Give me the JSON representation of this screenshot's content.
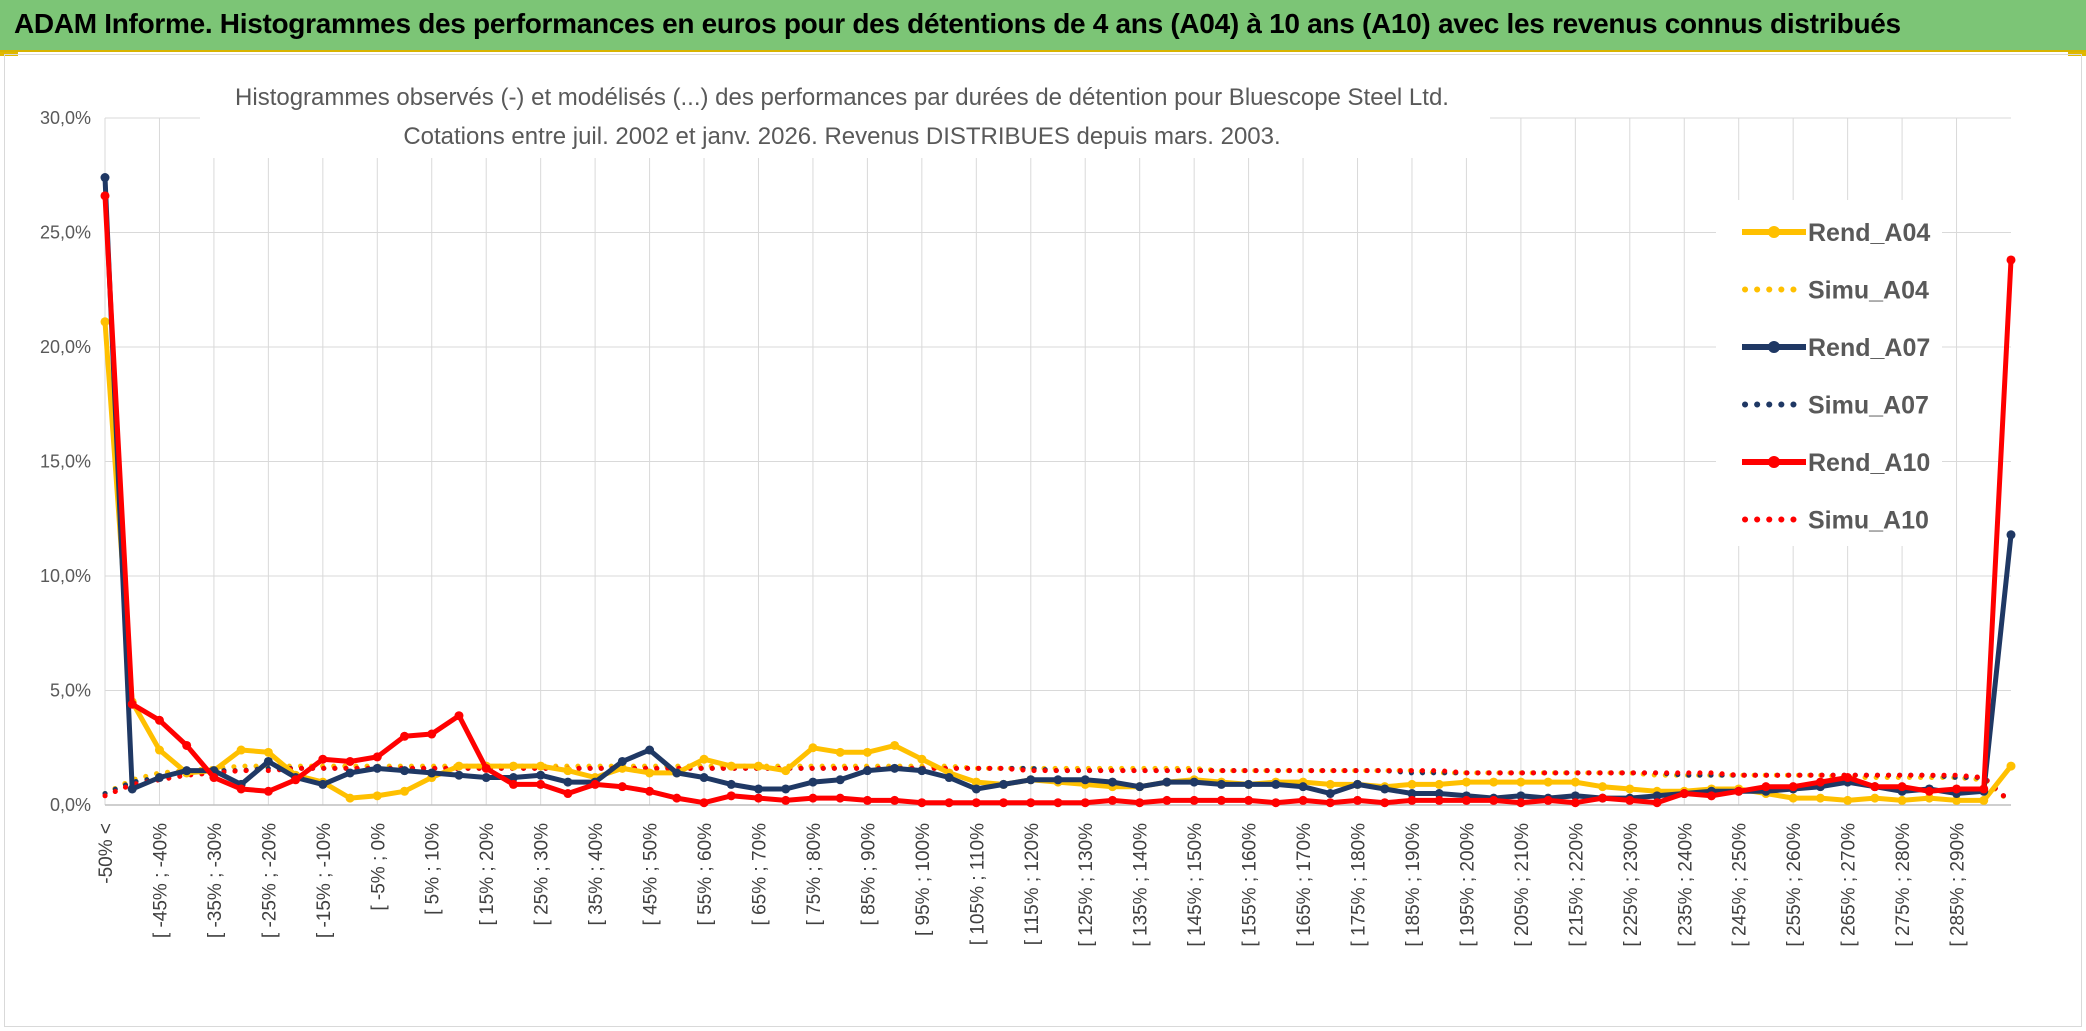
{
  "banner": {
    "title": "ADAM Informe. Histogrammes des performances en euros pour des détentions de 4 ans (A04) à 10 ans (A10) avec les revenus connus distribués"
  },
  "chart_data": {
    "type": "line",
    "title_line1": "Histogrammes observés (-) et modélisés (...) des performances par durées de détention pour Bluescope Steel Ltd.",
    "title_line2": "Cotations entre juil. 2002 et janv. 2026. Revenus DISTRIBUES depuis mars. 2003.",
    "ylim": [
      0,
      30
    ],
    "yticks": [
      0,
      5,
      10,
      15,
      20,
      25,
      30
    ],
    "ytick_labels": [
      "0,0%",
      "5,0%",
      "10,0%",
      "15,0%",
      "20,0%",
      "25,0%",
      "30,0%"
    ],
    "x_labels": [
      "-50% <",
      "[ -45% ; -40%",
      "[ -35% ; -30%",
      "[ -25% ; -20%",
      "[ -15% ; -10%",
      "[ -5% ; 0%",
      "[ 5% ; 10%",
      "[ 15% ; 20%",
      "[ 25% ; 30%",
      "[ 35% ; 40%",
      "[ 45% ; 50%",
      "[ 55% ; 60%",
      "[ 65% ; 70%",
      "[ 75% ; 80%",
      "[ 85% ; 90%",
      "[ 95% ; 100%",
      "[ 105% ; 110%",
      "[ 115% ; 120%",
      "[ 125% ; 130%",
      "[ 135% ; 140%",
      "[ 145% ; 150%",
      "[ 155% ; 160%",
      "[ 165% ; 170%",
      "[ 175% ; 180%",
      "[ 185% ; 190%",
      "[ 195% ; 200%",
      "[ 205% ; 210%",
      "[ 215% ; 220%",
      "[ 225% ; 230%",
      "[ 235% ; 240%",
      "[ 245% ; 250%",
      "[ 255% ; 260%",
      "[ 265% ; 270%",
      "[ 275% ; 280%",
      "[ 285% ; 290%"
    ],
    "n_points": 71,
    "legend_position": "right",
    "series": [
      {
        "name": "Rend_A04",
        "color": "#ffc000",
        "style": "solid",
        "marker": true,
        "values": [
          21.1,
          4.5,
          2.4,
          1.4,
          1.5,
          2.4,
          2.3,
          1.3,
          1.0,
          0.3,
          0.4,
          0.6,
          1.2,
          1.7,
          1.7,
          1.7,
          1.7,
          1.5,
          1.2,
          1.6,
          1.4,
          1.4,
          2.0,
          1.7,
          1.7,
          1.5,
          2.5,
          2.3,
          2.3,
          2.6,
          2.0,
          1.4,
          1.0,
          0.9,
          1.1,
          1.0,
          0.9,
          0.8,
          0.8,
          1.0,
          1.1,
          1.0,
          0.9,
          1.0,
          1.0,
          0.9,
          0.9,
          0.8,
          0.9,
          0.9,
          1.0,
          1.0,
          1.0,
          1.0,
          1.0,
          0.8,
          0.7,
          0.6,
          0.6,
          0.7,
          0.7,
          0.5,
          0.3,
          0.3,
          0.2,
          0.3,
          0.2,
          0.3,
          0.2,
          0.2,
          1.7
        ]
      },
      {
        "name": "Simu_A04",
        "color": "#ffc000",
        "style": "dotted",
        "marker": false,
        "values": [
          0.5,
          1.1,
          1.4,
          1.5,
          1.6,
          1.7,
          1.7,
          1.7,
          1.7,
          1.7,
          1.7,
          1.7,
          1.7,
          1.7,
          1.7,
          1.7,
          1.7,
          1.7,
          1.7,
          1.7,
          1.7,
          1.7,
          1.7,
          1.7,
          1.7,
          1.7,
          1.7,
          1.7,
          1.7,
          1.7,
          1.7,
          1.7,
          1.6,
          1.6,
          1.6,
          1.6,
          1.6,
          1.6,
          1.6,
          1.6,
          1.6,
          1.5,
          1.5,
          1.5,
          1.5,
          1.5,
          1.5,
          1.5,
          1.5,
          1.4,
          1.4,
          1.4,
          1.4,
          1.4,
          1.4,
          1.4,
          1.4,
          1.3,
          1.3,
          1.3,
          1.3,
          1.3,
          1.3,
          1.3,
          1.2,
          1.2,
          1.2,
          1.2,
          1.2,
          1.1,
          0.1
        ]
      },
      {
        "name": "Rend_A07",
        "color": "#1f3864",
        "style": "solid",
        "marker": true,
        "values": [
          27.4,
          0.7,
          1.2,
          1.5,
          1.5,
          0.9,
          1.9,
          1.2,
          0.9,
          1.4,
          1.6,
          1.5,
          1.4,
          1.3,
          1.2,
          1.2,
          1.3,
          1.0,
          1.0,
          1.9,
          2.4,
          1.4,
          1.2,
          0.9,
          0.7,
          0.7,
          1.0,
          1.1,
          1.5,
          1.6,
          1.5,
          1.2,
          0.7,
          0.9,
          1.1,
          1.1,
          1.1,
          1.0,
          0.8,
          1.0,
          1.0,
          0.9,
          0.9,
          0.9,
          0.8,
          0.5,
          0.9,
          0.7,
          0.5,
          0.5,
          0.4,
          0.3,
          0.4,
          0.3,
          0.4,
          0.3,
          0.3,
          0.4,
          0.5,
          0.6,
          0.6,
          0.6,
          0.7,
          0.8,
          1.0,
          0.8,
          0.6,
          0.7,
          0.5,
          0.6,
          11.8
        ]
      },
      {
        "name": "Simu_A07",
        "color": "#1f3864",
        "style": "dotted",
        "marker": false,
        "values": [
          0.5,
          1.0,
          1.2,
          1.4,
          1.5,
          1.5,
          1.6,
          1.6,
          1.6,
          1.6,
          1.6,
          1.6,
          1.6,
          1.6,
          1.6,
          1.6,
          1.6,
          1.6,
          1.6,
          1.6,
          1.6,
          1.6,
          1.6,
          1.6,
          1.6,
          1.6,
          1.6,
          1.6,
          1.6,
          1.6,
          1.6,
          1.6,
          1.6,
          1.6,
          1.6,
          1.5,
          1.5,
          1.5,
          1.5,
          1.5,
          1.5,
          1.5,
          1.5,
          1.5,
          1.5,
          1.5,
          1.5,
          1.5,
          1.4,
          1.4,
          1.4,
          1.4,
          1.4,
          1.4,
          1.4,
          1.4,
          1.4,
          1.4,
          1.3,
          1.3,
          1.3,
          1.3,
          1.3,
          1.3,
          1.3,
          1.3,
          1.3,
          1.3,
          1.2,
          1.2,
          0.1
        ]
      },
      {
        "name": "Rend_A10",
        "color": "#ff0000",
        "style": "solid",
        "marker": true,
        "values": [
          26.6,
          4.4,
          3.7,
          2.6,
          1.2,
          0.7,
          0.6,
          1.1,
          2.0,
          1.9,
          2.1,
          3.0,
          3.1,
          3.9,
          1.6,
          0.9,
          0.9,
          0.5,
          0.9,
          0.8,
          0.6,
          0.3,
          0.1,
          0.4,
          0.3,
          0.2,
          0.3,
          0.3,
          0.2,
          0.2,
          0.1,
          0.1,
          0.1,
          0.1,
          0.1,
          0.1,
          0.1,
          0.2,
          0.1,
          0.2,
          0.2,
          0.2,
          0.2,
          0.1,
          0.2,
          0.1,
          0.2,
          0.1,
          0.2,
          0.2,
          0.2,
          0.2,
          0.1,
          0.2,
          0.1,
          0.3,
          0.2,
          0.1,
          0.5,
          0.4,
          0.6,
          0.8,
          0.8,
          1.0,
          1.2,
          0.8,
          0.8,
          0.6,
          0.7,
          0.7,
          23.8
        ]
      },
      {
        "name": "Simu_A10",
        "color": "#ff0000",
        "style": "dotted",
        "marker": false,
        "values": [
          0.4,
          0.9,
          1.1,
          1.3,
          1.4,
          1.5,
          1.5,
          1.6,
          1.6,
          1.6,
          1.6,
          1.6,
          1.6,
          1.6,
          1.6,
          1.6,
          1.6,
          1.6,
          1.6,
          1.6,
          1.6,
          1.6,
          1.6,
          1.6,
          1.6,
          1.6,
          1.6,
          1.6,
          1.6,
          1.6,
          1.6,
          1.6,
          1.6,
          1.6,
          1.5,
          1.5,
          1.5,
          1.5,
          1.5,
          1.5,
          1.5,
          1.5,
          1.5,
          1.5,
          1.5,
          1.5,
          1.5,
          1.5,
          1.5,
          1.5,
          1.4,
          1.4,
          1.4,
          1.4,
          1.4,
          1.4,
          1.4,
          1.4,
          1.4,
          1.4,
          1.3,
          1.3,
          1.3,
          1.3,
          1.3,
          1.3,
          1.3,
          1.3,
          1.3,
          1.2,
          0.1
        ]
      }
    ]
  }
}
